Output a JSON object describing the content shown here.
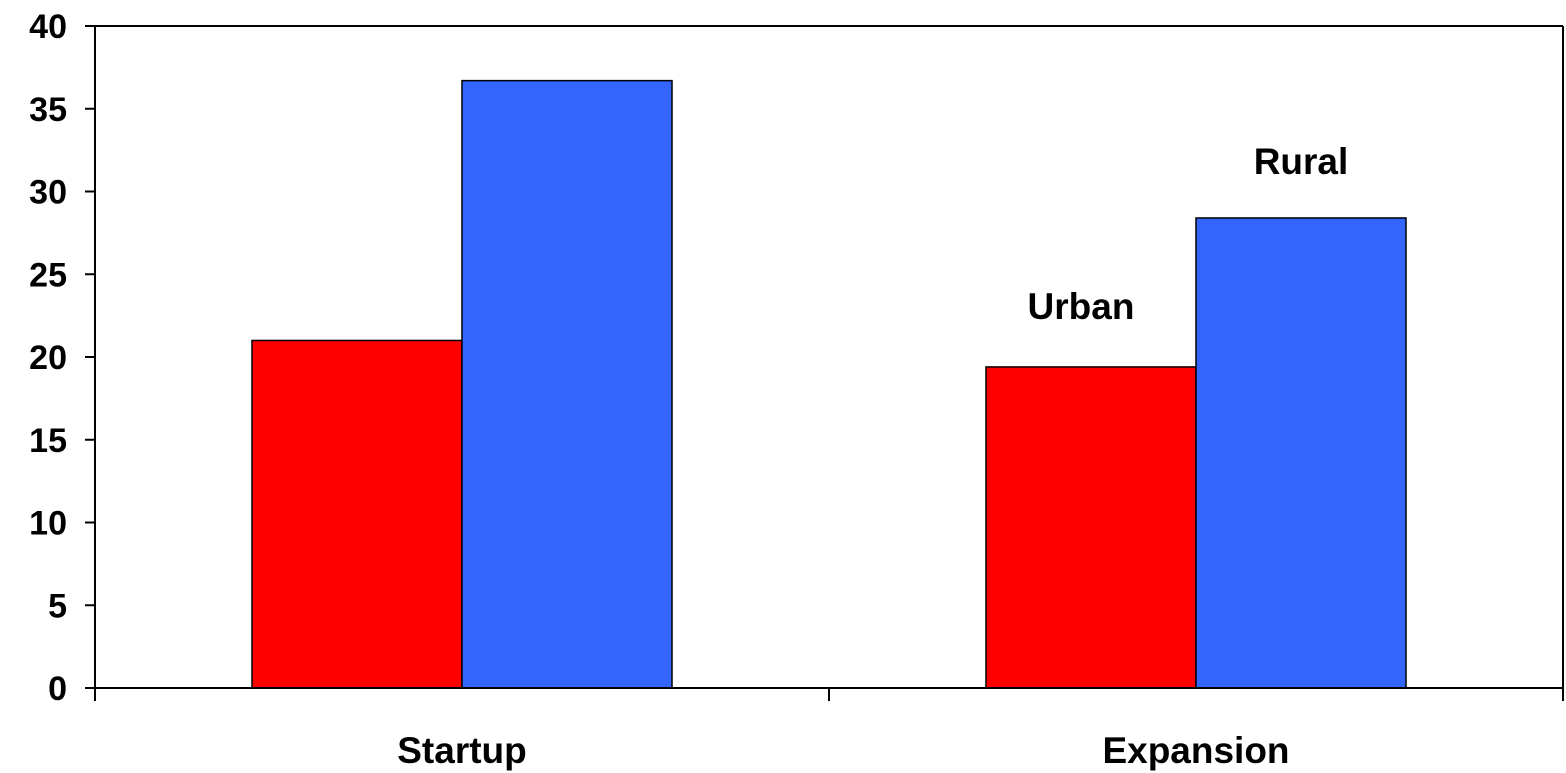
{
  "chart_data": {
    "type": "bar",
    "categories": [
      "Startup",
      "Expansion"
    ],
    "series": [
      {
        "name": "Urban",
        "values": [
          21.0,
          19.4
        ],
        "color": "#ff0000"
      },
      {
        "name": "Rural",
        "values": [
          36.7,
          28.4
        ],
        "color": "#3366ff"
      }
    ],
    "ylim": [
      0,
      40
    ],
    "yticks": [
      "0",
      "5",
      "10",
      "15",
      "20",
      "25",
      "30",
      "35",
      "40"
    ],
    "ytick_values": [
      0,
      5,
      10,
      15,
      20,
      25,
      30,
      35,
      40
    ],
    "grid": false,
    "legend": "none",
    "title": "",
    "xlabel": "",
    "ylabel": ""
  }
}
